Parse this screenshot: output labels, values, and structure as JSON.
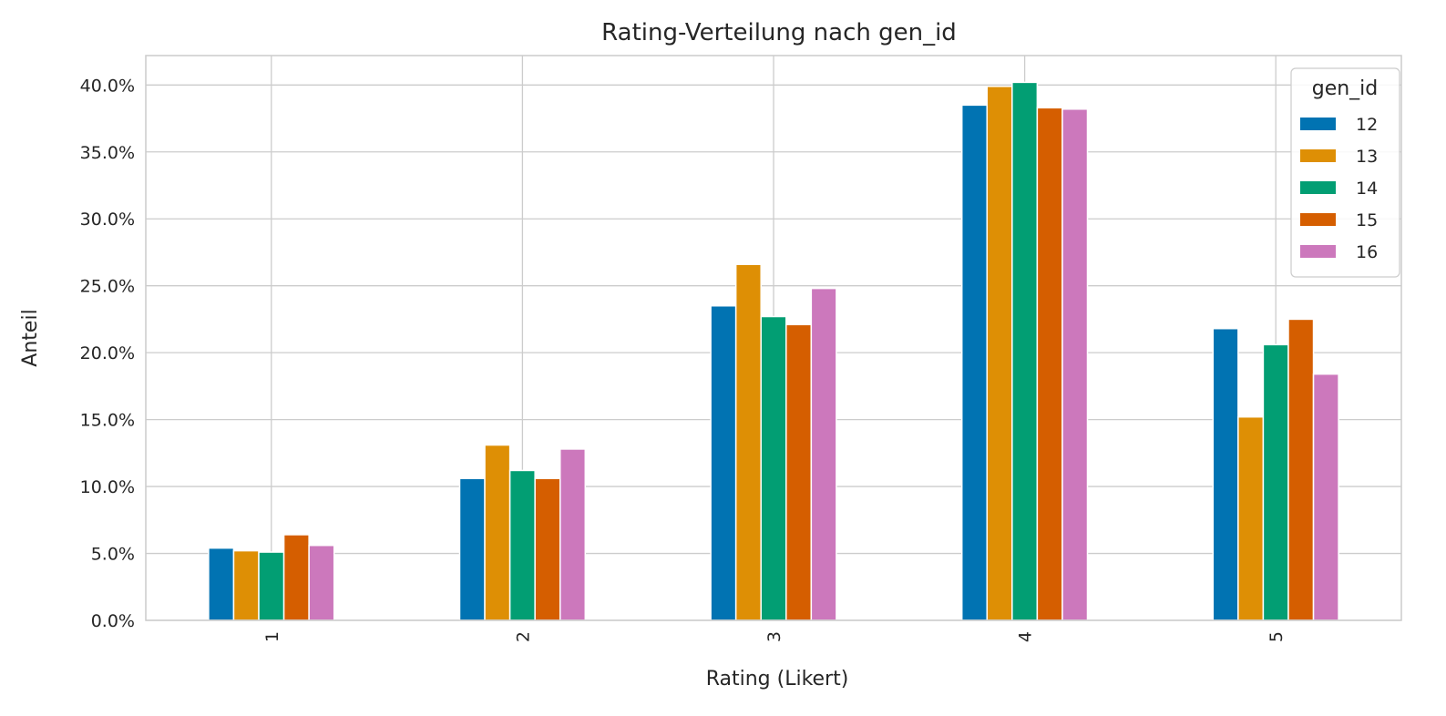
{
  "chart_data": {
    "type": "bar",
    "title": "Rating-Verteilung nach gen_id",
    "xlabel": "Rating (Likert)",
    "ylabel": "Anteil",
    "categories": [
      "1",
      "2",
      "3",
      "4",
      "5"
    ],
    "ylim": [
      0,
      0.422
    ],
    "yticks": [
      0.0,
      0.05,
      0.1,
      0.15,
      0.2,
      0.25,
      0.3,
      0.35,
      0.4
    ],
    "ytick_labels": [
      "0.0%",
      "5.0%",
      "10.0%",
      "15.0%",
      "20.0%",
      "25.0%",
      "30.0%",
      "35.0%",
      "40.0%"
    ],
    "grid": true,
    "legend": {
      "title": "gen_id",
      "position": "top-right"
    },
    "series": [
      {
        "name": "12",
        "color": "#0173b2",
        "values": [
          0.054,
          0.106,
          0.235,
          0.385,
          0.218
        ]
      },
      {
        "name": "13",
        "color": "#de8f05",
        "values": [
          0.052,
          0.131,
          0.266,
          0.399,
          0.152
        ]
      },
      {
        "name": "14",
        "color": "#029e73",
        "values": [
          0.051,
          0.112,
          0.227,
          0.402,
          0.206
        ]
      },
      {
        "name": "15",
        "color": "#d55e00",
        "values": [
          0.064,
          0.106,
          0.221,
          0.383,
          0.225
        ]
      },
      {
        "name": "16",
        "color": "#cc78bc",
        "values": [
          0.056,
          0.128,
          0.248,
          0.382,
          0.184
        ]
      }
    ]
  }
}
